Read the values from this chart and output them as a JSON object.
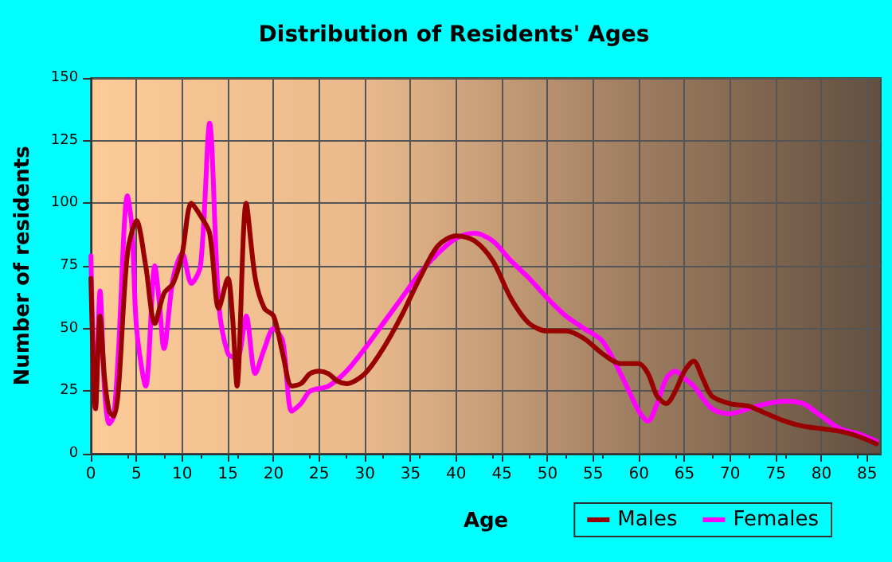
{
  "chart_data": {
    "type": "line",
    "title": "Distribution of Residents' Ages",
    "xlabel": "Age",
    "ylabel": "Number of residents",
    "xlim": [
      0,
      86.5
    ],
    "xticks": [
      0,
      5,
      10,
      15,
      20,
      25,
      30,
      35,
      40,
      45,
      50,
      55,
      60,
      65,
      70,
      75,
      80,
      85
    ],
    "ylim": [
      0,
      150
    ],
    "yticks": [
      0,
      25,
      50,
      75,
      100,
      125,
      150
    ],
    "grid": true,
    "legend": "bottom right",
    "marker": "none",
    "series": [
      {
        "name": "Males",
        "color": "#990000",
        "x": [
          0,
          0.5,
          1,
          1.5,
          2,
          2.5,
          3,
          4,
          5,
          6,
          7,
          8,
          9,
          10,
          11,
          12,
          13,
          14,
          15,
          15.5,
          16,
          17,
          18,
          19,
          20,
          21,
          22,
          23,
          24,
          25,
          26,
          27,
          28,
          30,
          32,
          34,
          36,
          38,
          40,
          42,
          44,
          46,
          48,
          50,
          52,
          54,
          56,
          58,
          60,
          61,
          62,
          63,
          64,
          65,
          66,
          67,
          68,
          70,
          72,
          74,
          76,
          78,
          80,
          82,
          84,
          86
        ],
        "values": [
          70,
          18,
          55,
          30,
          17,
          15,
          25,
          80,
          93,
          75,
          52,
          64,
          68,
          80,
          100,
          95,
          88,
          58,
          70,
          55,
          27,
          100,
          70,
          58,
          55,
          40,
          27,
          28,
          32,
          33,
          32,
          29,
          28,
          32,
          42,
          55,
          70,
          83,
          87,
          85,
          77,
          62,
          52,
          49,
          49,
          46,
          40,
          36,
          36,
          32,
          23,
          20,
          25,
          33,
          37,
          30,
          23,
          20,
          19,
          16,
          13,
          11,
          10,
          9,
          7,
          4
        ]
      },
      {
        "name": "Females",
        "color": "#ff00ff",
        "x": [
          0,
          0.5,
          1,
          1.5,
          2,
          2.5,
          3,
          4,
          4.5,
          5,
          6,
          7,
          7.5,
          8,
          9,
          10,
          11,
          12,
          13,
          14,
          15,
          16,
          17,
          18,
          19,
          20,
          21,
          22,
          23,
          24,
          26,
          28,
          30,
          32,
          34,
          36,
          38,
          40,
          42,
          44,
          46,
          48,
          50,
          52,
          54,
          56,
          58,
          60,
          61,
          62,
          63,
          64,
          65,
          66,
          68,
          70,
          72,
          74,
          76,
          78,
          80,
          82,
          84,
          86
        ],
        "values": [
          79,
          18,
          65,
          25,
          12,
          15,
          40,
          103,
          90,
          50,
          27,
          75,
          60,
          42,
          70,
          80,
          68,
          75,
          132,
          60,
          40,
          38,
          55,
          32,
          42,
          50,
          45,
          17,
          20,
          25,
          27,
          33,
          42,
          52,
          62,
          72,
          80,
          86,
          88,
          85,
          77,
          70,
          62,
          55,
          50,
          45,
          32,
          17,
          13,
          20,
          30,
          33,
          30,
          27,
          18,
          16,
          18,
          20,
          21,
          20,
          15,
          10,
          8,
          5
        ]
      }
    ]
  }
}
